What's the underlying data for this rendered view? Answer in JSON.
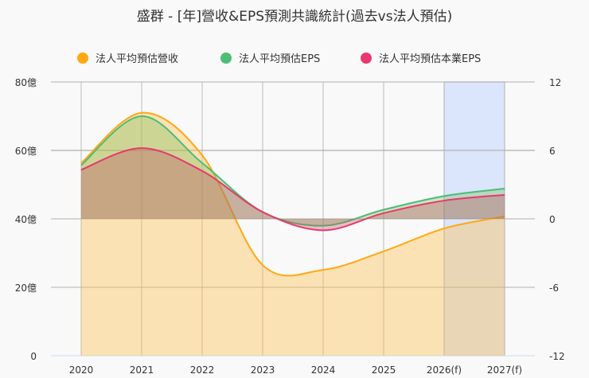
{
  "chart_data": {
    "type": "area",
    "title": "盛群 - [年]營收&EPS預測共識統計(過去vs法人預估)",
    "categories": [
      "2020",
      "2021",
      "2022",
      "2023",
      "2024",
      "2025",
      "2026(f)",
      "2027(f)"
    ],
    "highlight_categories": [
      "2026(f)",
      "2027(f)"
    ],
    "left_axis": {
      "ylim": [
        0,
        80
      ],
      "ticks": [
        0,
        20,
        40,
        60,
        80
      ],
      "tick_labels": [
        "0",
        "20億",
        "40億",
        "60億",
        "80億"
      ]
    },
    "right_axis": {
      "ylim": [
        -12,
        12
      ],
      "ticks": [
        -12,
        -6,
        0,
        6,
        12
      ],
      "tick_labels": [
        "-12",
        "-6",
        "0",
        "6",
        "12"
      ]
    },
    "series": [
      {
        "name": "法人平均預估營收",
        "axis": "left",
        "color": "#ffa812",
        "values": [
          56.3,
          71,
          58.6,
          26.5,
          25.1,
          30.5,
          37.2,
          40.7
        ]
      },
      {
        "name": "法人平均預估EPS",
        "axis": "right",
        "color": "#4dbd74",
        "values": [
          4.7,
          9.0,
          4.9,
          0.6,
          -0.6,
          0.8,
          2.0,
          2.65
        ]
      },
      {
        "name": "法人平均預估本業EPS",
        "axis": "right",
        "color": "#e8386e",
        "values": [
          4.3,
          6.2,
          4.2,
          0.6,
          -1.0,
          0.5,
          1.6,
          2.1
        ]
      }
    ],
    "legend_position": "top",
    "grid": true
  }
}
